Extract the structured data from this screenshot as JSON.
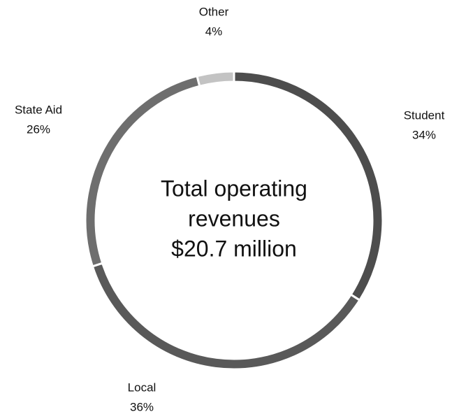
{
  "chart_data": {
    "type": "donut",
    "center_label": [
      "Total operating",
      "revenues",
      "$20.7 million"
    ],
    "categories": [
      "Student",
      "Local",
      "State Aid",
      "Other"
    ],
    "values": [
      34,
      36,
      26,
      4
    ],
    "value_labels": [
      "34%",
      "36%",
      "26%",
      "4%"
    ],
    "colors": [
      "#4d4d4d",
      "#595959",
      "#6e6e6e",
      "#c3c3c3"
    ]
  }
}
